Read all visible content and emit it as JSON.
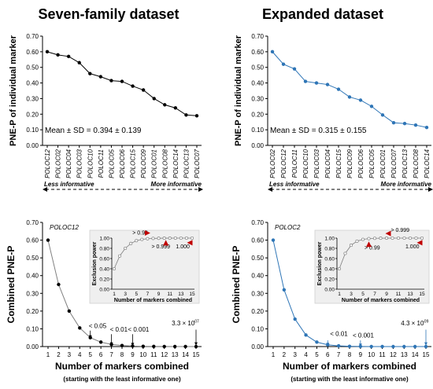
{
  "chart_data": [
    {
      "type": "line",
      "panel": "top-left",
      "column_title": "Seven-family dataset",
      "ylabel": "PNE-P of individual marker",
      "categories": [
        "POLOC12",
        "POLOC02",
        "POLOC04",
        "POLOC03",
        "POLOC10",
        "POLOC11",
        "POLOC05",
        "POLOC06",
        "POLOC15",
        "POLOC09",
        "POLOC01",
        "POLOC08",
        "POLOC14",
        "POLOC13",
        "POLOC07"
      ],
      "values": [
        0.6,
        0.58,
        0.57,
        0.53,
        0.46,
        0.44,
        0.415,
        0.41,
        0.38,
        0.355,
        0.3,
        0.26,
        0.24,
        0.195,
        0.19
      ],
      "ylim": [
        0,
        0.7
      ],
      "yticks": [
        "0.00",
        "0.10",
        "0.20",
        "0.30",
        "0.40",
        "0.50",
        "0.60",
        "0.70"
      ],
      "annotation": "Mean ± SD = 0.394 ± 0.139",
      "arrow_left": "Less informative",
      "arrow_right": "More informative",
      "color": "#000000"
    },
    {
      "type": "line",
      "panel": "top-right",
      "column_title": "Expanded dataset",
      "ylabel": "PNE-P of individual marker",
      "categories": [
        "POLOC02",
        "POLOC12",
        "POLOC11",
        "POLOC10",
        "POLOC03",
        "POLOC04",
        "POLOC15",
        "POLOC09",
        "POLOC06",
        "POLOC05",
        "POLOC01",
        "POLOC07",
        "POLOC13",
        "POLOC08",
        "POLOC14"
      ],
      "values": [
        0.6,
        0.52,
        0.49,
        0.41,
        0.4,
        0.39,
        0.36,
        0.31,
        0.29,
        0.25,
        0.195,
        0.145,
        0.14,
        0.13,
        0.115
      ],
      "ylim": [
        0,
        0.7
      ],
      "yticks": [
        "0.00",
        "0.10",
        "0.20",
        "0.30",
        "0.40",
        "0.50",
        "0.60",
        "0.70"
      ],
      "annotation": "Mean ± SD = 0.315 ± 0.155",
      "arrow_left": "Less informative",
      "arrow_right": "More informative",
      "color": "#2e75b6"
    },
    {
      "type": "line",
      "panel": "bottom-left",
      "ylabel": "Combined PNE-P",
      "xlabel": "Number of markers combined",
      "xsublabel": "(starting with the least informative one)",
      "x": [
        1,
        2,
        3,
        4,
        5,
        6,
        7,
        8,
        9,
        10,
        11,
        12,
        13,
        14,
        15
      ],
      "values": [
        0.6,
        0.35,
        0.2,
        0.105,
        0.05,
        0.025,
        0.012,
        0.006,
        0.003,
        0.0013,
        0.0006,
        0.0003,
        0.0001,
        5e-05,
        3e-07
      ],
      "ylim": [
        0,
        0.7
      ],
      "yticks": [
        "0.00",
        "0.10",
        "0.20",
        "0.30",
        "0.40",
        "0.50",
        "0.60",
        "0.70"
      ],
      "first_label": "POLOC12",
      "annotations": [
        "< 0.05",
        "< 0.01",
        "< 0.001",
        "3.3 × 10",
        "-07"
      ],
      "color": "#000000",
      "inset": {
        "ylabel": "Exclusion power",
        "xlabel": "Number of markers combined",
        "x": [
          1,
          2,
          3,
          4,
          5,
          6,
          7,
          8,
          9,
          10,
          11,
          12,
          13,
          14,
          15
        ],
        "values": [
          0.4,
          0.65,
          0.8,
          0.895,
          0.95,
          0.975,
          0.988,
          0.994,
          0.997,
          0.9987,
          0.9994,
          0.9997,
          0.9999,
          0.99995,
          1.0
        ],
        "ylim": [
          0,
          1
        ],
        "yticks": [
          "0.00",
          "0.20",
          "0.40",
          "0.60",
          "0.80",
          "1.00"
        ],
        "annotations": [
          "> 0.99",
          "> 0.999",
          "1.000"
        ]
      }
    },
    {
      "type": "line",
      "panel": "bottom-right",
      "ylabel": "Combined PNE-P",
      "xlabel": "Number of markers combined",
      "xsublabel": "(starting with the least informative one)",
      "x": [
        1,
        2,
        3,
        4,
        5,
        6,
        7,
        8,
        9,
        10,
        11,
        12,
        13,
        14,
        15
      ],
      "values": [
        0.6,
        0.32,
        0.155,
        0.065,
        0.025,
        0.01,
        0.004,
        0.0015,
        0.0006,
        0.0002,
        8e-05,
        3e-05,
        1e-05,
        5e-06,
        4e-09
      ],
      "ylim": [
        0,
        0.7
      ],
      "yticks": [
        "0.00",
        "0.10",
        "0.20",
        "0.30",
        "0.40",
        "0.50",
        "0.60",
        "0.70"
      ],
      "first_label": "POLOC2",
      "annotations": [
        "< 0.01",
        "< 0.001",
        "4.3 × 10",
        "-09"
      ],
      "color": "#2e75b6",
      "inset": {
        "ylabel": "Exclusion power",
        "xlabel": "Number of markers combined",
        "x": [
          1,
          2,
          3,
          4,
          5,
          6,
          7,
          8,
          9,
          10,
          11,
          12,
          13,
          14,
          15
        ],
        "values": [
          0.4,
          0.7,
          0.86,
          0.94,
          0.975,
          0.99,
          0.996,
          0.9985,
          0.9994,
          0.9998,
          0.99992,
          0.99997,
          0.99999,
          1.0,
          1.0
        ],
        "ylim": [
          0,
          1
        ],
        "yticks": [
          "0.00",
          "0.20",
          "0.40",
          "0.60",
          "0.80",
          "1.00"
        ],
        "annotations": [
          "> 0.999",
          "> 0.99",
          "1.000"
        ]
      }
    }
  ]
}
